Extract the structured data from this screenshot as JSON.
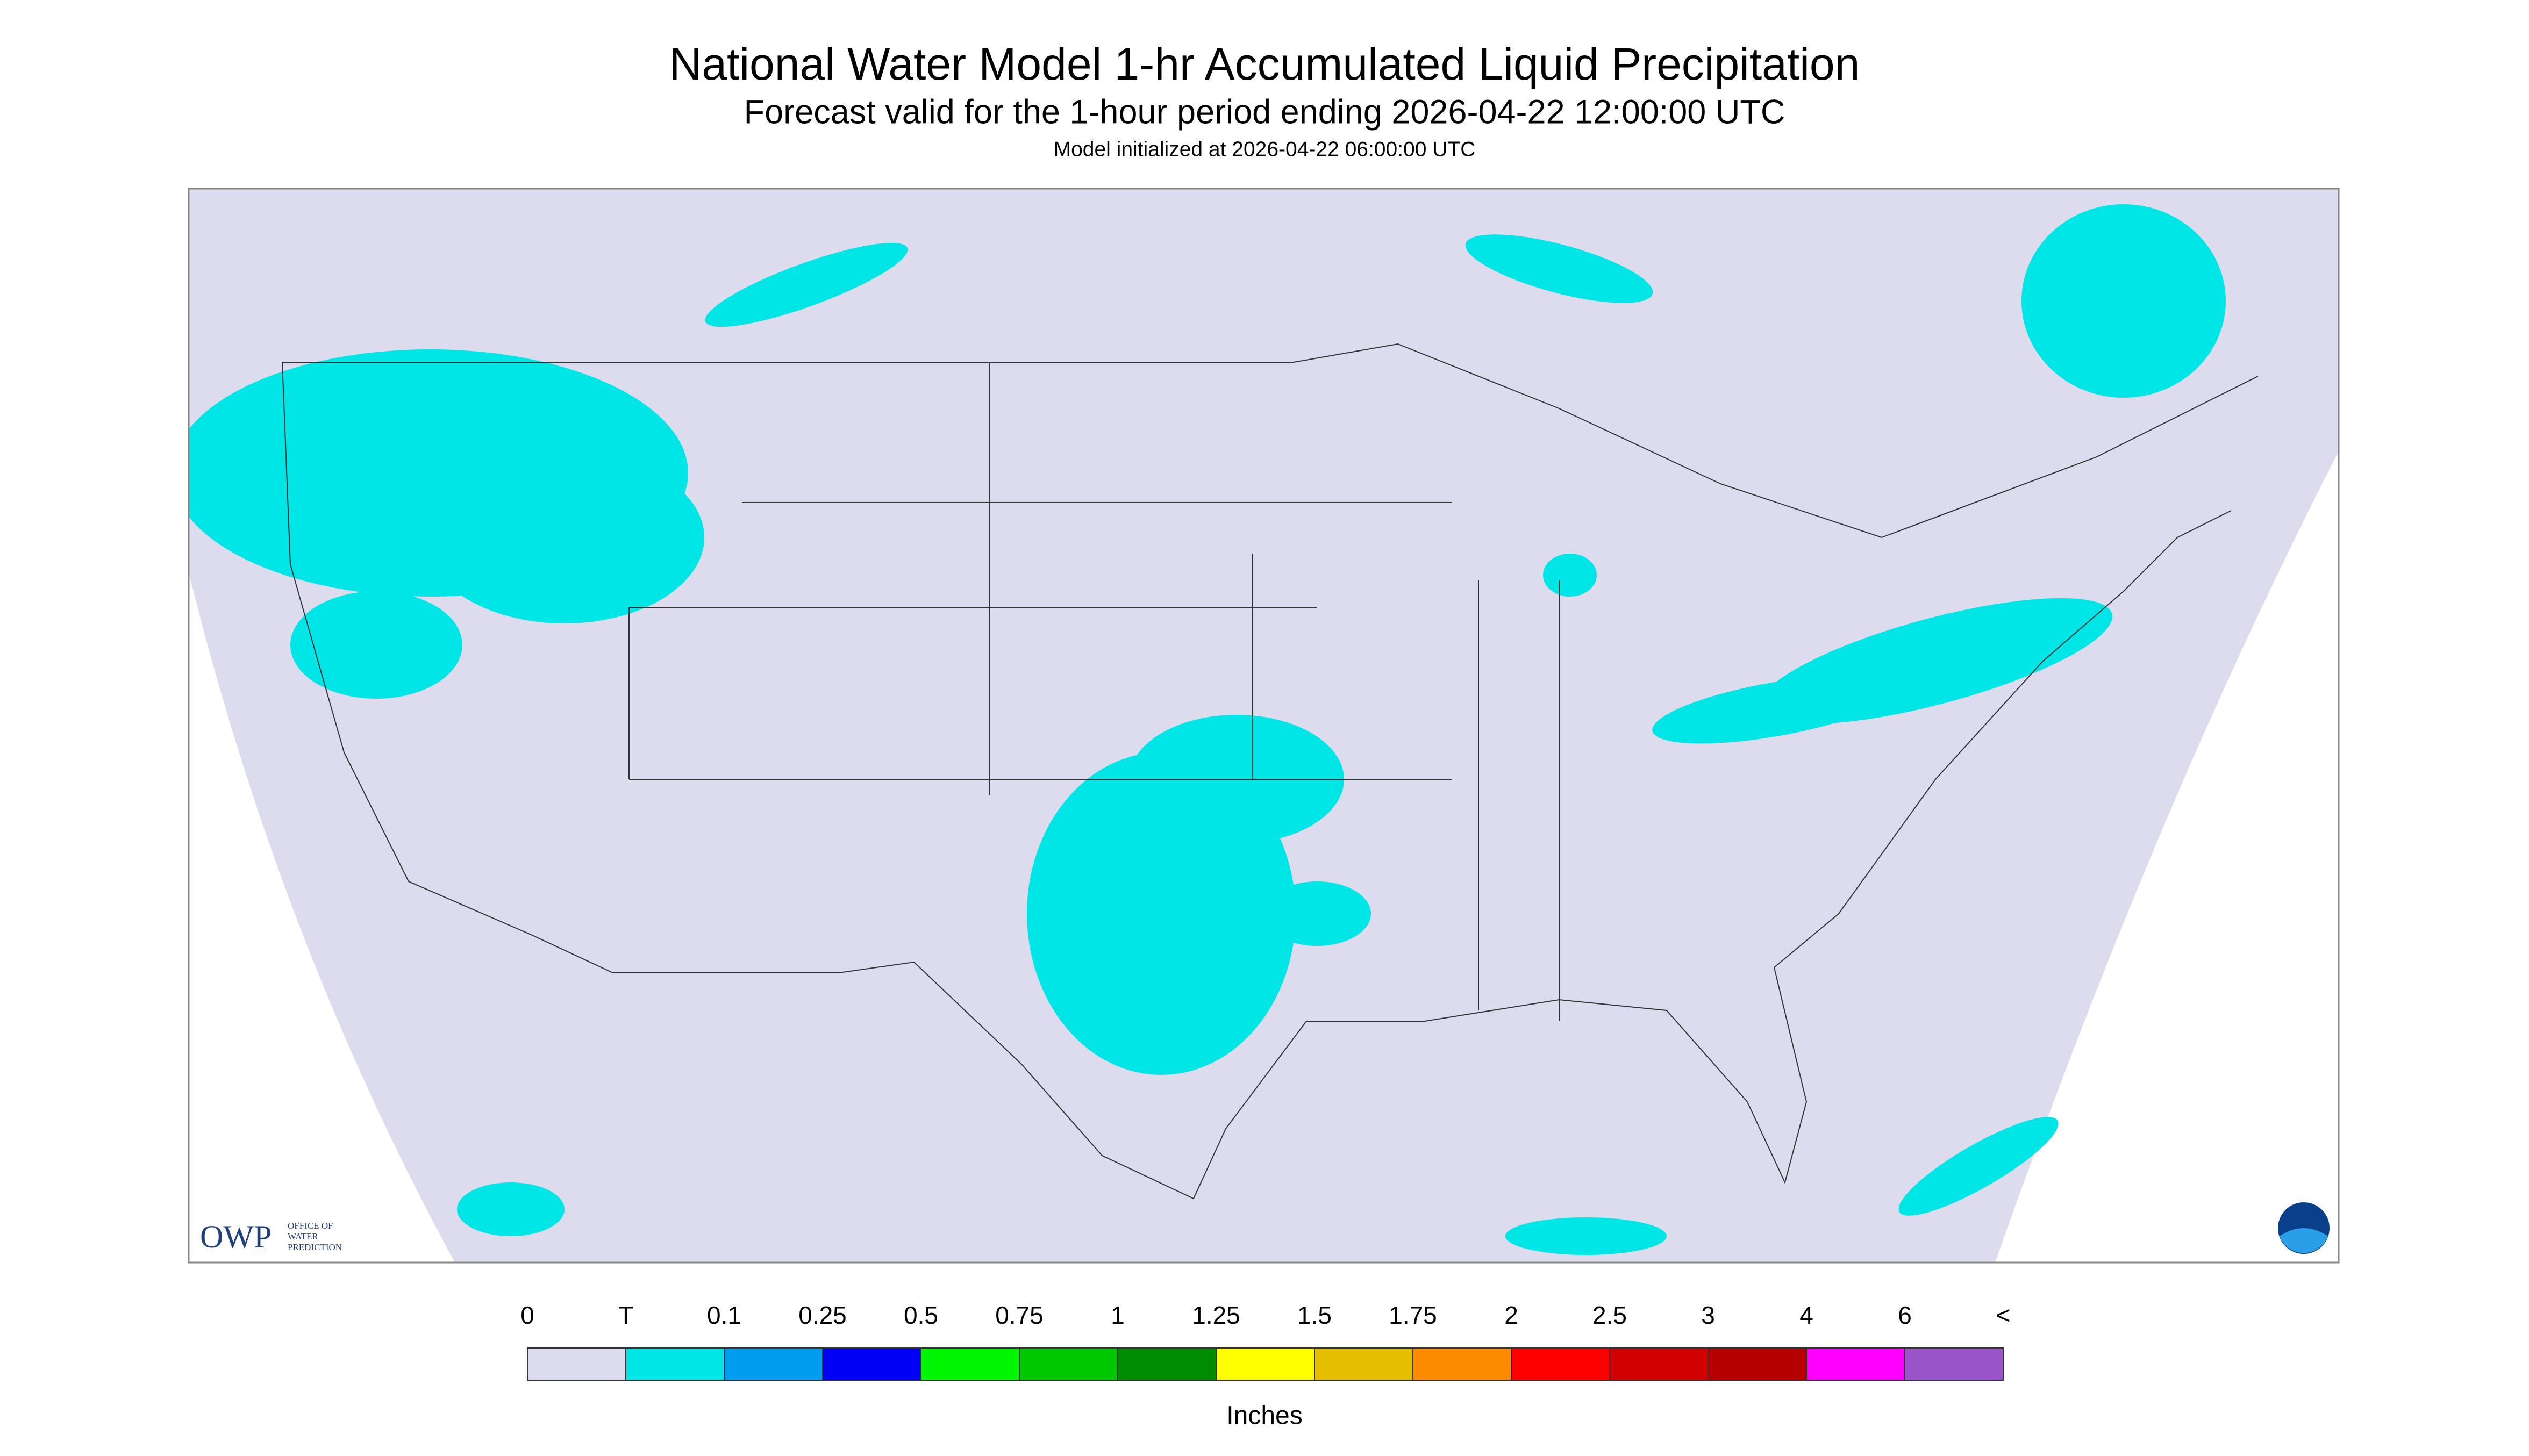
{
  "header": {
    "title": "National Water Model 1-hr Accumulated Liquid Precipitation",
    "subtitle": "Forecast valid for the 1-hour period ending 2026-04-22 12:00:00 UTC",
    "initialized": "Model initialized at 2026-04-22 06:00:00 UTC"
  },
  "legend": {
    "labels": [
      "0",
      "T",
      "0.1",
      "0.25",
      "0.5",
      "0.75",
      "1",
      "1.25",
      "1.5",
      "1.75",
      "2",
      "2.5",
      "3",
      "4",
      "6",
      "<"
    ],
    "colors": [
      "#dcdcee",
      "#00e6e6",
      "#009cf0",
      "#0000f5",
      "#00f500",
      "#00c800",
      "#008c00",
      "#ffff00",
      "#e6be00",
      "#ff8c00",
      "#ff0000",
      "#d20000",
      "#b40000",
      "#ff00ff",
      "#9955c9"
    ],
    "unit": "Inches"
  },
  "logos": {
    "owp": {
      "abbr": "OWP",
      "lines": [
        "OFFICE OF",
        "WATER",
        "PREDICTION"
      ]
    }
  }
}
